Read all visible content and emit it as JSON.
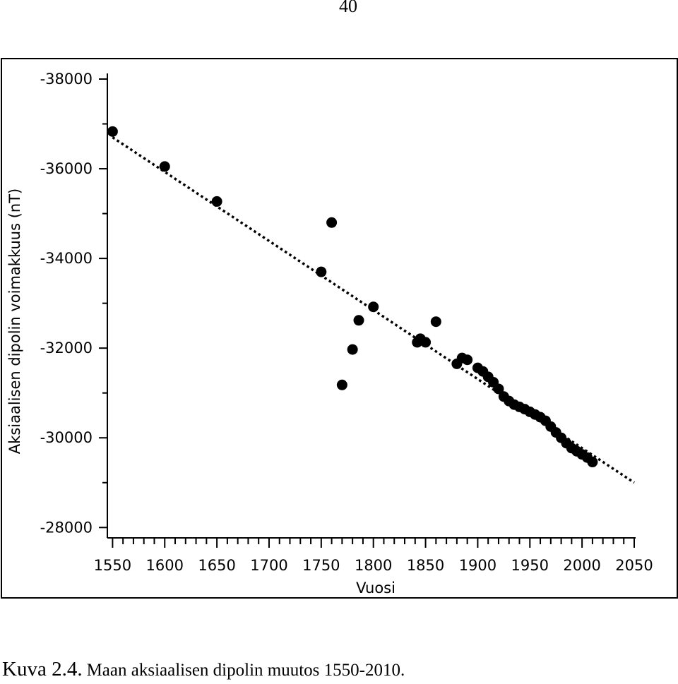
{
  "page_number": "40",
  "caption": {
    "label": "Kuva 2.4.",
    "text": "Maan aksiaalisen dipolin muutos 1550-2010."
  },
  "chart_data": {
    "type": "scatter",
    "title": "",
    "xlabel": "Vuosi",
    "ylabel": "Aksiaalisen dipolin voimakkuus (nT)",
    "xlim": [
      1545,
      2050
    ],
    "ylim": [
      -27800,
      -38000
    ],
    "y_reversed": true,
    "x_ticks": [
      1550,
      1600,
      1650,
      1700,
      1750,
      1800,
      1850,
      1900,
      1950,
      2000,
      2050
    ],
    "x_minor_step": 10,
    "y_ticks": [
      -38000,
      -36000,
      -34000,
      -32000,
      -30000,
      -28000
    ],
    "y_minor_step": 1000,
    "grid": false,
    "points": [
      {
        "x": 1550,
        "y": -36830
      },
      {
        "x": 1600,
        "y": -36050
      },
      {
        "x": 1650,
        "y": -35270
      },
      {
        "x": 1750,
        "y": -33700
      },
      {
        "x": 1760,
        "y": -34800
      },
      {
        "x": 1770,
        "y": -31180
      },
      {
        "x": 1780,
        "y": -31970
      },
      {
        "x": 1786,
        "y": -32620
      },
      {
        "x": 1800,
        "y": -32920
      },
      {
        "x": 1842,
        "y": -32130
      },
      {
        "x": 1845,
        "y": -32210
      },
      {
        "x": 1850,
        "y": -32130
      },
      {
        "x": 1860,
        "y": -32590
      },
      {
        "x": 1880,
        "y": -31650
      },
      {
        "x": 1885,
        "y": -31780
      },
      {
        "x": 1890,
        "y": -31740
      },
      {
        "x": 1900,
        "y": -31560
      },
      {
        "x": 1905,
        "y": -31480
      },
      {
        "x": 1910,
        "y": -31360
      },
      {
        "x": 1915,
        "y": -31240
      },
      {
        "x": 1920,
        "y": -31090
      },
      {
        "x": 1925,
        "y": -30920
      },
      {
        "x": 1930,
        "y": -30820
      },
      {
        "x": 1935,
        "y": -30740
      },
      {
        "x": 1940,
        "y": -30690
      },
      {
        "x": 1945,
        "y": -30640
      },
      {
        "x": 1950,
        "y": -30580
      },
      {
        "x": 1955,
        "y": -30520
      },
      {
        "x": 1960,
        "y": -30460
      },
      {
        "x": 1965,
        "y": -30380
      },
      {
        "x": 1970,
        "y": -30250
      },
      {
        "x": 1975,
        "y": -30120
      },
      {
        "x": 1980,
        "y": -30000
      },
      {
        "x": 1985,
        "y": -29880
      },
      {
        "x": 1990,
        "y": -29770
      },
      {
        "x": 1995,
        "y": -29700
      },
      {
        "x": 2000,
        "y": -29630
      },
      {
        "x": 2005,
        "y": -29560
      },
      {
        "x": 2010,
        "y": -29460
      }
    ],
    "trend_line": {
      "x": [
        1550,
        2050
      ],
      "y": [
        -36700,
        -29000
      ],
      "style": "dotted"
    },
    "marker_color": "#000000",
    "line_color": "#000000"
  }
}
